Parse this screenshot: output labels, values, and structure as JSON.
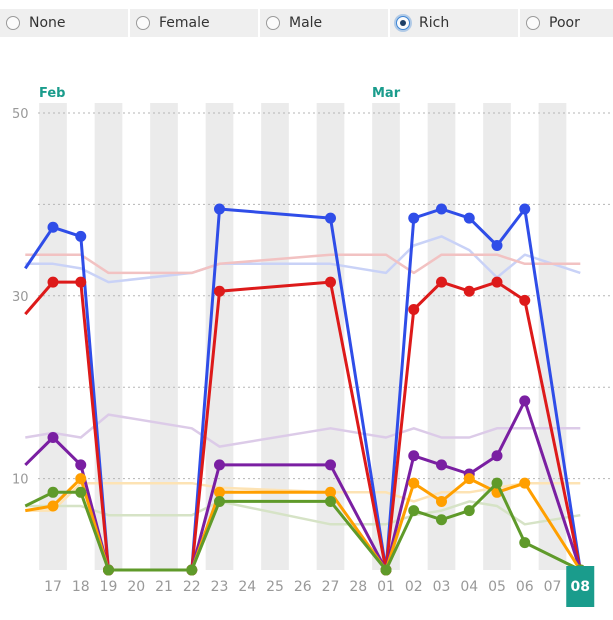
{
  "filters": {
    "options": [
      {
        "key": "none",
        "label": "None"
      },
      {
        "key": "female",
        "label": "Female"
      },
      {
        "key": "male",
        "label": "Male"
      },
      {
        "key": "rich",
        "label": "Rich"
      },
      {
        "key": "poor",
        "label": "Poor"
      }
    ],
    "selected": "rich"
  },
  "chart_data": {
    "type": "line",
    "month_labels": [
      {
        "label": "Feb",
        "at": "17"
      },
      {
        "label": "Mar",
        "at": "01"
      }
    ],
    "x": [
      "17",
      "18",
      "19",
      "20",
      "21",
      "22",
      "23",
      "24",
      "25",
      "26",
      "27",
      "28",
      "01",
      "02",
      "03",
      "04",
      "05",
      "06",
      "07",
      "08"
    ],
    "highlighted_x": "08",
    "y_ticks": [
      10,
      30,
      50
    ],
    "ylim": [
      0,
      50
    ],
    "grid": true,
    "colors": {
      "month_label": "#1a9c8c",
      "highlight_box": "#1a9c8c",
      "band": "#ebebeb",
      "tick_label": "#999999"
    },
    "series": [
      {
        "color": "#2f4de8",
        "highlighted": true,
        "points": [
          {
            "x": "16",
            "y": 33
          },
          {
            "x": "17",
            "y": 37.5
          },
          {
            "x": "18",
            "y": 36.5
          },
          {
            "x": "19",
            "y": 0
          },
          {
            "x": "22",
            "y": 0
          },
          {
            "x": "23",
            "y": 39.5
          },
          {
            "x": "27",
            "y": 38.5
          },
          {
            "x": "01",
            "y": 0
          },
          {
            "x": "02",
            "y": 38.5
          },
          {
            "x": "03",
            "y": 39.5
          },
          {
            "x": "04",
            "y": 38.5
          },
          {
            "x": "05",
            "y": 35.5
          },
          {
            "x": "06",
            "y": 39.5
          },
          {
            "x": "08",
            "y": 0
          }
        ]
      },
      {
        "color": "#dd1a1a",
        "highlighted": true,
        "points": [
          {
            "x": "16",
            "y": 28
          },
          {
            "x": "17",
            "y": 31.5
          },
          {
            "x": "18",
            "y": 31.5
          },
          {
            "x": "19",
            "y": 0
          },
          {
            "x": "22",
            "y": 0
          },
          {
            "x": "23",
            "y": 30.5
          },
          {
            "x": "27",
            "y": 31.5
          },
          {
            "x": "01",
            "y": 0
          },
          {
            "x": "02",
            "y": 28.5
          },
          {
            "x": "03",
            "y": 31.5
          },
          {
            "x": "04",
            "y": 30.5
          },
          {
            "x": "05",
            "y": 31.5
          },
          {
            "x": "06",
            "y": 29.5
          },
          {
            "x": "08",
            "y": 0
          }
        ]
      },
      {
        "color": "#7a1fa2",
        "highlighted": true,
        "points": [
          {
            "x": "16",
            "y": 11.5
          },
          {
            "x": "17",
            "y": 14.5
          },
          {
            "x": "18",
            "y": 11.5
          },
          {
            "x": "19",
            "y": 0
          },
          {
            "x": "22",
            "y": 0
          },
          {
            "x": "23",
            "y": 11.5
          },
          {
            "x": "27",
            "y": 11.5
          },
          {
            "x": "01",
            "y": 0
          },
          {
            "x": "02",
            "y": 12.5
          },
          {
            "x": "03",
            "y": 11.5
          },
          {
            "x": "04",
            "y": 10.5
          },
          {
            "x": "05",
            "y": 12.5
          },
          {
            "x": "06",
            "y": 18.5
          },
          {
            "x": "08",
            "y": 0
          }
        ]
      },
      {
        "color": "#ff9f00",
        "highlighted": true,
        "points": [
          {
            "x": "16",
            "y": 6.5
          },
          {
            "x": "17",
            "y": 7
          },
          {
            "x": "18",
            "y": 10
          },
          {
            "x": "19",
            "y": 0
          },
          {
            "x": "22",
            "y": 0
          },
          {
            "x": "23",
            "y": 8.5
          },
          {
            "x": "27",
            "y": 8.5
          },
          {
            "x": "01",
            "y": 0
          },
          {
            "x": "02",
            "y": 9.5
          },
          {
            "x": "03",
            "y": 7.5
          },
          {
            "x": "04",
            "y": 10
          },
          {
            "x": "05",
            "y": 8.5
          },
          {
            "x": "06",
            "y": 9.5
          },
          {
            "x": "08",
            "y": 0
          }
        ]
      },
      {
        "color": "#5f9a2a",
        "highlighted": true,
        "points": [
          {
            "x": "16",
            "y": 7
          },
          {
            "x": "17",
            "y": 8.5
          },
          {
            "x": "18",
            "y": 8.5
          },
          {
            "x": "19",
            "y": 0
          },
          {
            "x": "22",
            "y": 0
          },
          {
            "x": "23",
            "y": 7.5
          },
          {
            "x": "27",
            "y": 7.5
          },
          {
            "x": "01",
            "y": 0
          },
          {
            "x": "02",
            "y": 6.5
          },
          {
            "x": "03",
            "y": 5.5
          },
          {
            "x": "04",
            "y": 6.5
          },
          {
            "x": "05",
            "y": 9.5
          },
          {
            "x": "06",
            "y": 3
          },
          {
            "x": "08",
            "y": 0
          }
        ]
      },
      {
        "color": "#c9d2f7",
        "highlighted": false,
        "points": [
          {
            "x": "16",
            "y": 33.5
          },
          {
            "x": "17",
            "y": 33.5
          },
          {
            "x": "18",
            "y": 33
          },
          {
            "x": "19",
            "y": 31.5
          },
          {
            "x": "22",
            "y": 32.5
          },
          {
            "x": "23",
            "y": 33.5
          },
          {
            "x": "27",
            "y": 33.5
          },
          {
            "x": "01",
            "y": 32.5
          },
          {
            "x": "02",
            "y": 35.5
          },
          {
            "x": "03",
            "y": 36.5
          },
          {
            "x": "04",
            "y": 35
          },
          {
            "x": "05",
            "y": 32
          },
          {
            "x": "06",
            "y": 34.5
          },
          {
            "x": "08",
            "y": 32.5
          }
        ]
      },
      {
        "color": "#f2c2c2",
        "highlighted": false,
        "points": [
          {
            "x": "16",
            "y": 34.5
          },
          {
            "x": "17",
            "y": 34.5
          },
          {
            "x": "18",
            "y": 34.5
          },
          {
            "x": "19",
            "y": 32.5
          },
          {
            "x": "22",
            "y": 32.5
          },
          {
            "x": "23",
            "y": 33.5
          },
          {
            "x": "27",
            "y": 34.5
          },
          {
            "x": "01",
            "y": 34.5
          },
          {
            "x": "02",
            "y": 32.5
          },
          {
            "x": "03",
            "y": 34.5
          },
          {
            "x": "04",
            "y": 34.5
          },
          {
            "x": "05",
            "y": 34.5
          },
          {
            "x": "06",
            "y": 33.5
          },
          {
            "x": "08",
            "y": 33.5
          }
        ]
      },
      {
        "color": "#dccbe8",
        "highlighted": false,
        "points": [
          {
            "x": "16",
            "y": 14.5
          },
          {
            "x": "17",
            "y": 15
          },
          {
            "x": "18",
            "y": 14.5
          },
          {
            "x": "19",
            "y": 17
          },
          {
            "x": "22",
            "y": 15.5
          },
          {
            "x": "23",
            "y": 13.5
          },
          {
            "x": "27",
            "y": 15.5
          },
          {
            "x": "01",
            "y": 14.5
          },
          {
            "x": "02",
            "y": 15.5
          },
          {
            "x": "03",
            "y": 14.5
          },
          {
            "x": "04",
            "y": 14.5
          },
          {
            "x": "05",
            "y": 15.5
          },
          {
            "x": "06",
            "y": 15.5
          },
          {
            "x": "08",
            "y": 15.5
          }
        ]
      },
      {
        "color": "#fde3b4",
        "highlighted": false,
        "points": [
          {
            "x": "16",
            "y": 6.5
          },
          {
            "x": "17",
            "y": 6.5
          },
          {
            "x": "18",
            "y": 9.5
          },
          {
            "x": "19",
            "y": 9.5
          },
          {
            "x": "22",
            "y": 9.5
          },
          {
            "x": "23",
            "y": 9
          },
          {
            "x": "27",
            "y": 8.5
          },
          {
            "x": "01",
            "y": 8.5
          },
          {
            "x": "02",
            "y": 7.5
          },
          {
            "x": "03",
            "y": 8.5
          },
          {
            "x": "04",
            "y": 8.5
          },
          {
            "x": "05",
            "y": 9
          },
          {
            "x": "06",
            "y": 9.5
          },
          {
            "x": "08",
            "y": 9.5
          }
        ]
      },
      {
        "color": "#d6e3c6",
        "highlighted": false,
        "points": [
          {
            "x": "16",
            "y": 7
          },
          {
            "x": "17",
            "y": 7
          },
          {
            "x": "18",
            "y": 7
          },
          {
            "x": "19",
            "y": 6
          },
          {
            "x": "22",
            "y": 6
          },
          {
            "x": "23",
            "y": 7.5
          },
          {
            "x": "27",
            "y": 5
          },
          {
            "x": "01",
            "y": 5
          },
          {
            "x": "02",
            "y": 6
          },
          {
            "x": "03",
            "y": 6.5
          },
          {
            "x": "04",
            "y": 7.5
          },
          {
            "x": "05",
            "y": 7
          },
          {
            "x": "06",
            "y": 5
          },
          {
            "x": "08",
            "y": 6
          }
        ]
      }
    ]
  }
}
